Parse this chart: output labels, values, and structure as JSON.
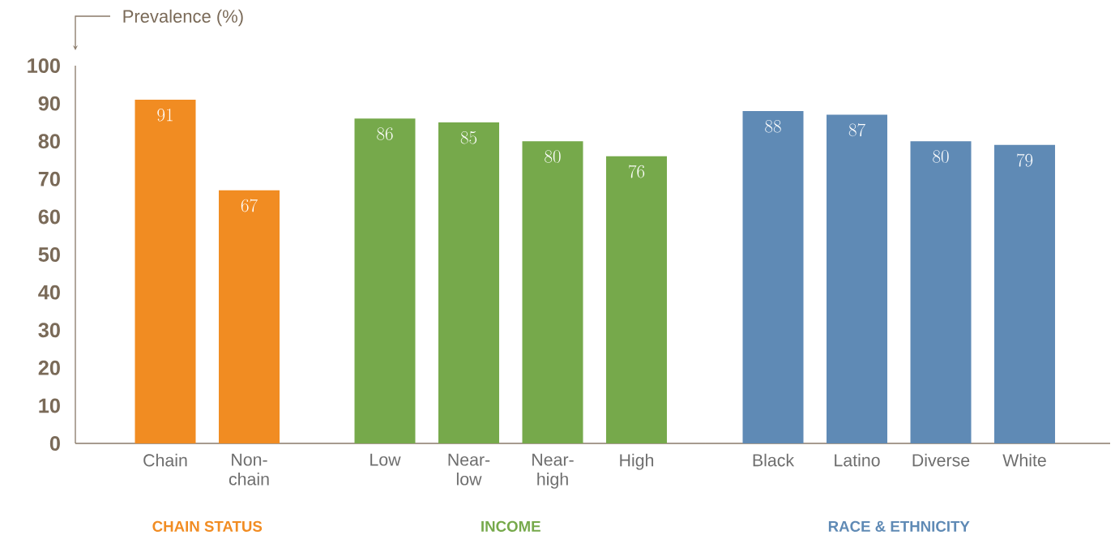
{
  "chart_data": [
    {
      "type": "bar",
      "xlabel": "CHAIN STATUS",
      "ylabel": "Prevalence (%)",
      "categories": [
        "Chain",
        "Non-chain"
      ],
      "values": [
        91,
        67
      ],
      "color": "#f18c22",
      "ylim": [
        0,
        100
      ],
      "yticks": [
        0,
        10,
        20,
        30,
        40,
        50,
        60,
        70,
        80,
        90,
        100
      ],
      "data_labels": true
    },
    {
      "type": "bar",
      "xlabel": "INCOME",
      "categories": [
        "Low",
        "Near-low",
        "Near-high",
        "High"
      ],
      "values": [
        86,
        85,
        80,
        76
      ],
      "color": "#76a94b",
      "ylim": [
        0,
        100
      ],
      "tick_labels": "x",
      "data_labels": true
    },
    {
      "type": "bar",
      "xlabel": "RACE & ETHNICITY",
      "categories": [
        "Black",
        "Latino",
        "Diverse",
        "White"
      ],
      "values": [
        88,
        87,
        80,
        79
      ],
      "color": "#5f8ab5",
      "ylim": [
        0,
        100
      ],
      "tick_labels": "x",
      "data_labels": true
    }
  ]
}
